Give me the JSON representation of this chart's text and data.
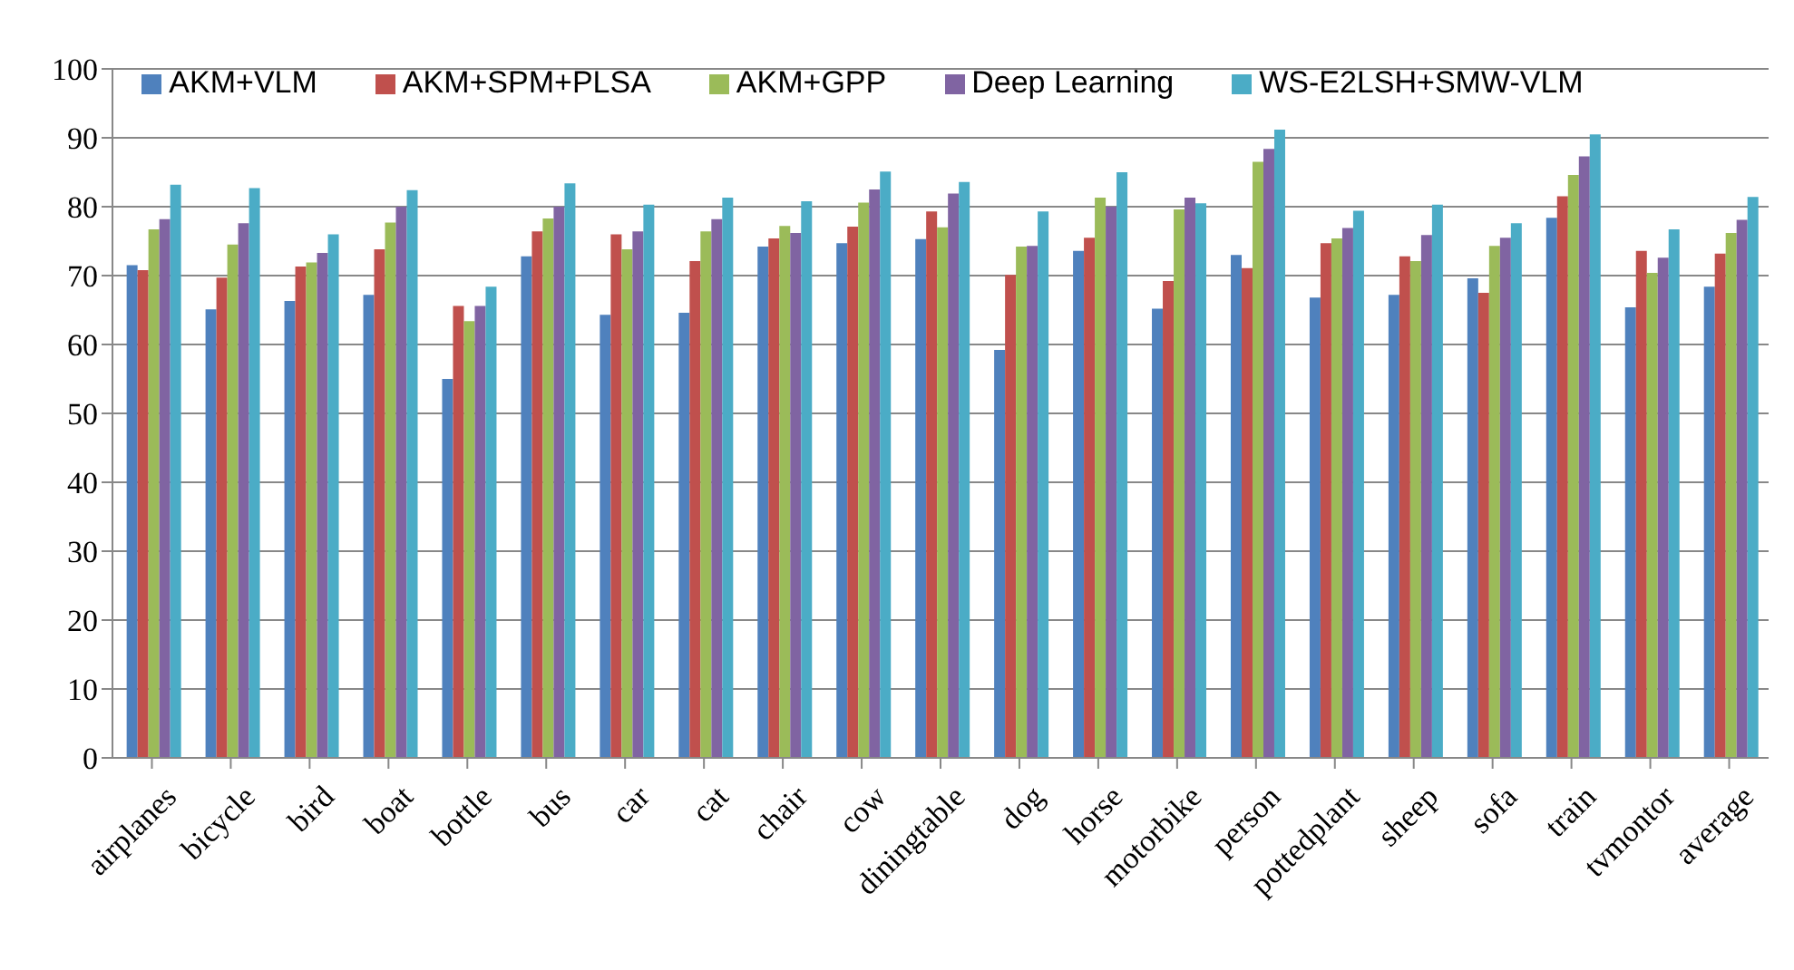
{
  "chart_data": {
    "type": "bar",
    "categories": [
      "airplanes",
      "bicycle",
      "bird",
      "boat",
      "bottle",
      "bus",
      "car",
      "cat",
      "chair",
      "cow",
      "diningtable",
      "dog",
      "horse",
      "motorbike",
      "person",
      "pottedplant",
      "sheep",
      "sofa",
      "train",
      "tvmontor",
      "average"
    ],
    "series": [
      {
        "name": "AKM+VLM",
        "color": "#4f81bd",
        "values": [
          71.5,
          65.1,
          66.3,
          67.2,
          55.0,
          72.8,
          64.3,
          64.6,
          74.2,
          74.7,
          75.3,
          59.2,
          73.6,
          65.2,
          73.0,
          66.8,
          67.2,
          69.6,
          78.4,
          65.4,
          68.4
        ]
      },
      {
        "name": "AKM+SPM+PLSA",
        "color": "#c0504d",
        "values": [
          70.8,
          69.7,
          71.3,
          73.8,
          65.6,
          76.4,
          76.0,
          72.1,
          75.4,
          77.1,
          79.3,
          70.1,
          75.5,
          69.2,
          71.1,
          74.7,
          72.8,
          67.5,
          81.5,
          73.6,
          73.2
        ]
      },
      {
        "name": "AKM+GPP",
        "color": "#9bbb59",
        "values": [
          76.7,
          74.5,
          71.9,
          77.7,
          63.4,
          78.3,
          73.8,
          76.4,
          77.2,
          80.6,
          77.0,
          74.2,
          81.3,
          79.6,
          86.5,
          75.4,
          72.1,
          74.3,
          84.6,
          70.4,
          76.2
        ]
      },
      {
        "name": "Deep Learning",
        "color": "#8064a2",
        "values": [
          78.2,
          77.6,
          73.3,
          80.0,
          65.6,
          80.0,
          76.4,
          78.2,
          76.2,
          82.5,
          81.9,
          74.3,
          80.0,
          81.3,
          88.4,
          76.9,
          75.9,
          75.5,
          87.3,
          72.6,
          78.1
        ]
      },
      {
        "name": "WS-E2LSH+SMW-VLM",
        "color": "#4bacc6",
        "values": [
          83.2,
          82.7,
          76.0,
          82.4,
          68.4,
          83.4,
          80.3,
          81.3,
          80.8,
          85.1,
          83.6,
          79.3,
          85.0,
          80.5,
          91.2,
          79.4,
          80.3,
          77.6,
          90.5,
          76.7,
          81.4
        ]
      }
    ],
    "ylim": [
      0,
      100
    ],
    "yticks": [
      0,
      10,
      20,
      30,
      40,
      50,
      60,
      70,
      80,
      90,
      100
    ],
    "grid": "y",
    "legend": "top"
  }
}
